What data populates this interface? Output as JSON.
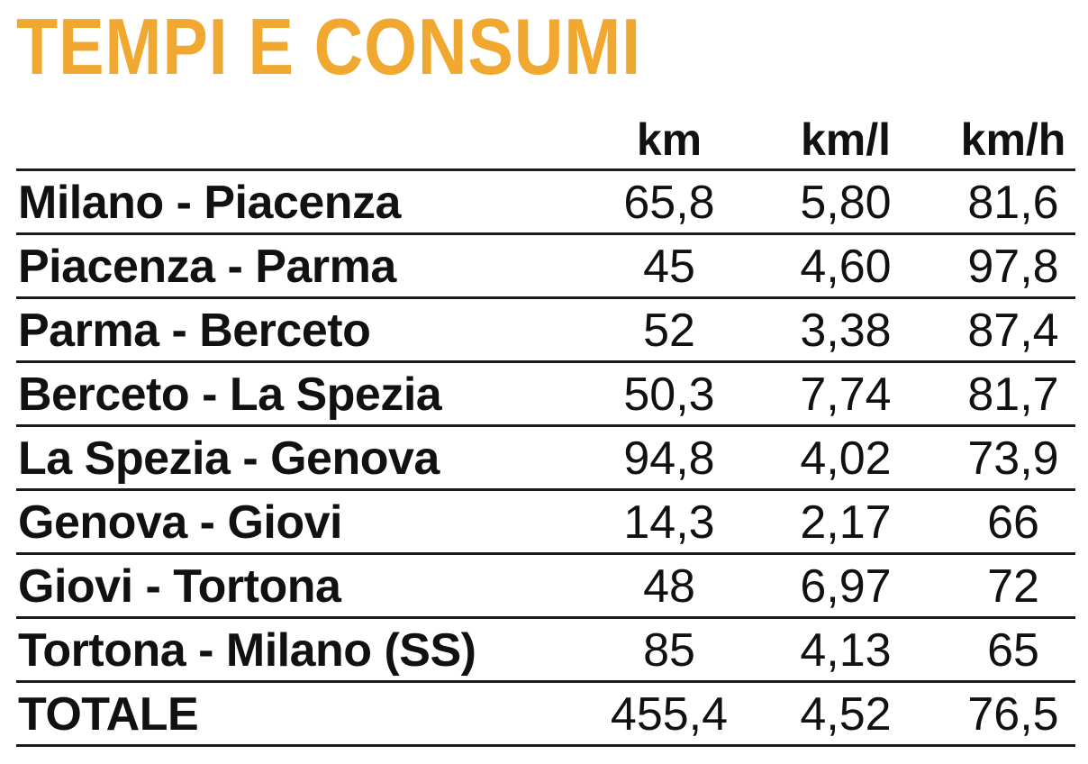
{
  "chart_data": {
    "type": "table",
    "title": "TEMPI E CONSUMI",
    "columns": [
      "km",
      "km/l",
      "km/h"
    ],
    "rows": [
      {
        "label": "Milano - Piacenza",
        "km": "65,8",
        "kml": "5,80",
        "kmh": "81,6"
      },
      {
        "label": "Piacenza - Parma",
        "km": "45",
        "kml": "4,60",
        "kmh": "97,8"
      },
      {
        "label": "Parma - Berceto",
        "km": "52",
        "kml": "3,38",
        "kmh": "87,4"
      },
      {
        "label": "Berceto - La Spezia",
        "km": "50,3",
        "kml": "7,74",
        "kmh": "81,7"
      },
      {
        "label": "La Spezia - Genova",
        "km": "94,8",
        "kml": "4,02",
        "kmh": "73,9"
      },
      {
        "label": "Genova - Giovi",
        "km": "14,3",
        "kml": "2,17",
        "kmh": "66"
      },
      {
        "label": "Giovi - Tortona",
        "km": "48",
        "kml": "6,97",
        "kmh": "72"
      },
      {
        "label": "Tortona - Milano (SS)",
        "km": "85",
        "kml": "4,13",
        "kmh": "65"
      },
      {
        "label": "TOTALE",
        "km": "455,4",
        "kml": "4,52",
        "kmh": "76,5"
      }
    ]
  },
  "colors": {
    "title": "#f0a830",
    "text": "#111111",
    "rule": "#1a1a1a"
  }
}
